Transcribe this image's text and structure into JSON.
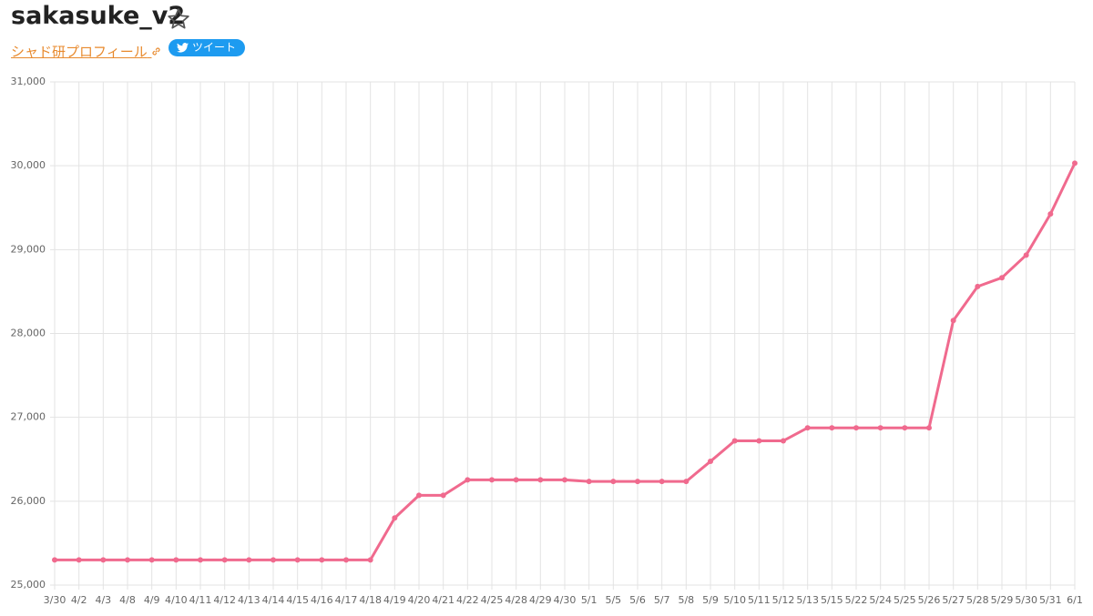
{
  "header": {
    "title": "sakasuke_v2",
    "profile_link": "シャド研プロフィール",
    "tweet": "ツイート"
  },
  "chart_data": {
    "type": "line",
    "categories": [
      "3/30",
      "4/2",
      "4/3",
      "4/8",
      "4/9",
      "4/10",
      "4/11",
      "4/12",
      "4/13",
      "4/14",
      "4/15",
      "4/16",
      "4/17",
      "4/18",
      "4/19",
      "4/20",
      "4/21",
      "4/22",
      "4/25",
      "4/28",
      "4/29",
      "4/30",
      "5/1",
      "5/5",
      "5/6",
      "5/7",
      "5/8",
      "5/9",
      "5/10",
      "5/11",
      "5/12",
      "5/13",
      "5/15",
      "5/22",
      "5/24",
      "5/25",
      "5/26",
      "5/27",
      "5/28",
      "5/29",
      "5/30",
      "5/31",
      "6/1"
    ],
    "series": [
      {
        "color": "#f06a8e",
        "values": [
          25300,
          25300,
          25300,
          25300,
          25300,
          25300,
          25300,
          25300,
          25300,
          25300,
          25300,
          25300,
          25300,
          25300,
          25800,
          26070,
          26070,
          26255,
          26255,
          26255,
          26255,
          26255,
          26235,
          26235,
          26235,
          26235,
          26235,
          26475,
          26720,
          26720,
          26720,
          26875,
          26875,
          26875,
          26875,
          26875,
          26875,
          28155,
          28560,
          28665,
          28935,
          29425,
          30030
        ]
      }
    ],
    "ylim": [
      25000,
      31000
    ],
    "yticks": [
      {
        "value": 25000,
        "label": "25,000"
      },
      {
        "value": 26000,
        "label": "26,000"
      },
      {
        "value": 27000,
        "label": "27,000"
      },
      {
        "value": 28000,
        "label": "28,000"
      },
      {
        "value": 29000,
        "label": "29,000"
      },
      {
        "value": 30000,
        "label": "30,000"
      },
      {
        "value": 31000,
        "label": "31,000"
      }
    ],
    "grid": true
  }
}
